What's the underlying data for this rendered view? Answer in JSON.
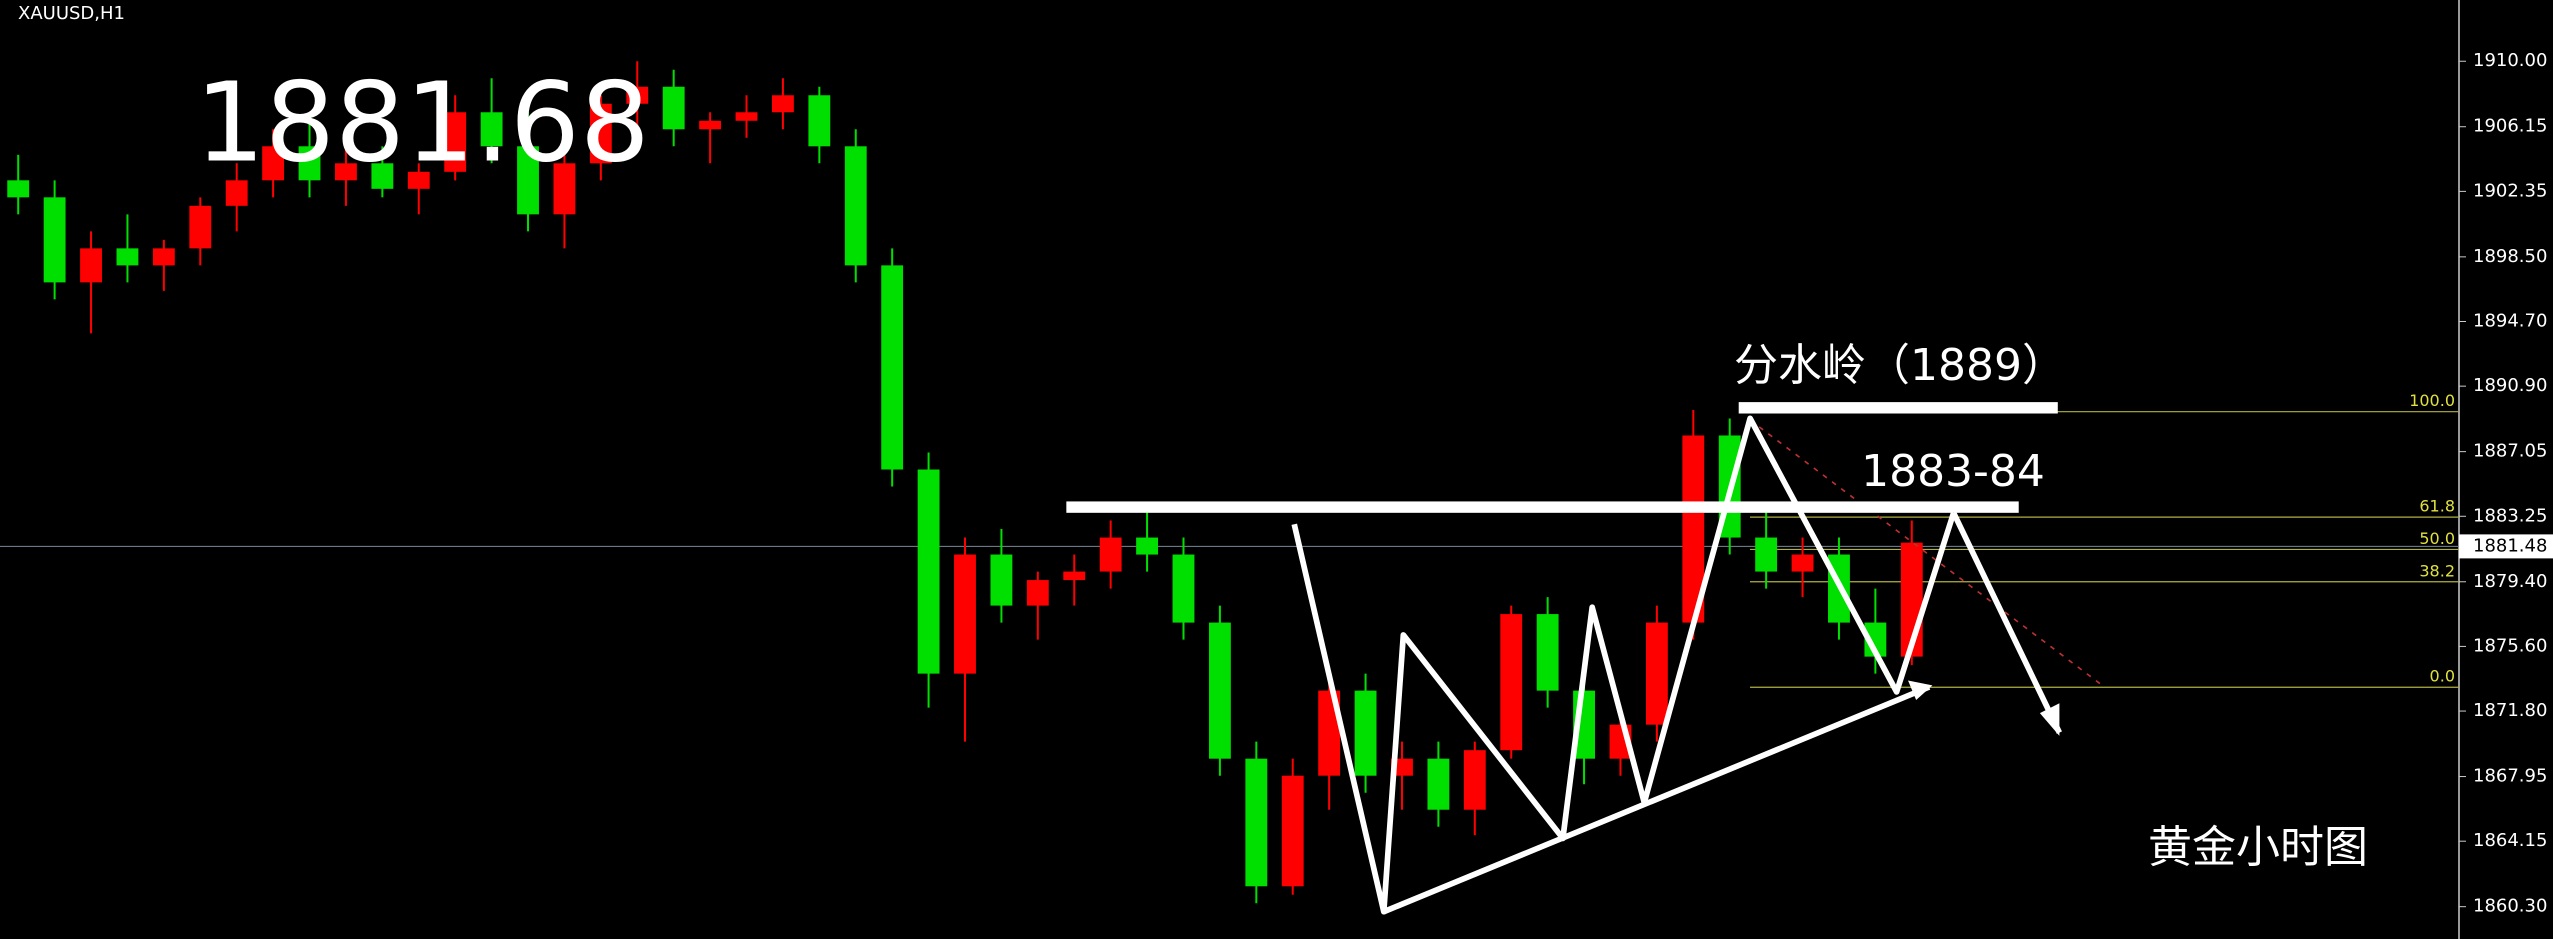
{
  "chart_data": {
    "type": "candlestick",
    "symbol": "XAUUSD,H1",
    "annotations": [
      "1881.68",
      "分水岭（1889）",
      "1883-84",
      "黄金小时图"
    ],
    "up_color": "#ff0000",
    "down_color": "#00e000",
    "candles": {
      "open": [
        1903,
        1902,
        1897,
        1899,
        1898,
        1899,
        1901.5,
        1903,
        1905,
        1903,
        1904,
        1902.5,
        1903.5,
        1907,
        1905,
        1901,
        1904,
        1907.5,
        1908.5,
        1906,
        1906.5,
        1907,
        1908,
        1905,
        1898,
        1886,
        1874,
        1881,
        1878,
        1879.5,
        1880,
        1882,
        1881,
        1877,
        1869,
        1861.5,
        1868,
        1873,
        1868,
        1869,
        1866,
        1869.5,
        1877.5,
        1873,
        1869,
        1871,
        1877,
        1888,
        1882,
        1880,
        1881,
        1877,
        1875
      ],
      "high": [
        1904.5,
        1903,
        1900,
        1901,
        1899.5,
        1902,
        1904,
        1906,
        1906.5,
        1905,
        1905,
        1904,
        1908,
        1909,
        1907,
        1905,
        1908,
        1910,
        1909.5,
        1907,
        1908,
        1909,
        1908.5,
        1906,
        1899,
        1887,
        1882,
        1882.5,
        1880,
        1881,
        1883,
        1884,
        1882,
        1878,
        1870,
        1869,
        1874,
        1874,
        1870,
        1870,
        1870,
        1878,
        1878.5,
        1874,
        1872,
        1878,
        1889.5,
        1889,
        1884,
        1882,
        1882,
        1879,
        1883
      ],
      "low": [
        1901,
        1896,
        1894,
        1897,
        1896.5,
        1898,
        1900,
        1902,
        1902,
        1901.5,
        1902,
        1901,
        1903,
        1904,
        1900,
        1899,
        1903,
        1906,
        1905,
        1904,
        1905.5,
        1906,
        1904,
        1897,
        1885,
        1872,
        1870,
        1877,
        1876,
        1878,
        1879,
        1880,
        1876,
        1868,
        1860.5,
        1861,
        1866,
        1867,
        1866,
        1865,
        1864.5,
        1869,
        1872,
        1867.5,
        1868,
        1870,
        1876,
        1881,
        1879,
        1878.5,
        1876,
        1874,
        1874.5
      ],
      "close": [
        1902,
        1897,
        1899,
        1898,
        1899,
        1901.5,
        1903,
        1905,
        1903,
        1904,
        1902.5,
        1903.5,
        1907,
        1905,
        1901,
        1904,
        1907.5,
        1908.5,
        1906,
        1906.5,
        1907,
        1908,
        1905,
        1898,
        1886,
        1874,
        1881,
        1878,
        1879.5,
        1880,
        1882,
        1881,
        1877,
        1869,
        1861.5,
        1868,
        1873,
        1868,
        1869,
        1866,
        1869.5,
        1877.5,
        1873,
        1869,
        1871,
        1877,
        1888,
        1882,
        1880,
        1881,
        1877,
        1875,
        1881.7
      ]
    },
    "fib": {
      "color": "#b0b040",
      "levels": [
        {
          "price": 1889.4,
          "label": "100.0"
        },
        {
          "price": 1883.2,
          "label": "61.8"
        },
        {
          "price": 1881.3,
          "label": "50.0"
        },
        {
          "price": 1879.4,
          "label": "38.2"
        },
        {
          "price": 1873.2,
          "label": "0.0"
        }
      ]
    },
    "last_price": {
      "value": 1881.48,
      "label": "1881.48"
    },
    "ylim": [
      1858.4,
      1913.6
    ],
    "yticks": [
      {
        "value": 1910,
        "label": "1910.00"
      },
      {
        "value": 1906.15,
        "label": "1906.15"
      },
      {
        "value": 1902.35,
        "label": "1902.35"
      },
      {
        "value": 1898.5,
        "label": "1898.50"
      },
      {
        "value": 1894.7,
        "label": "1894.70"
      },
      {
        "value": 1890.9,
        "label": "1890.90"
      },
      {
        "value": 1887.05,
        "label": "1887.05"
      },
      {
        "value": 1883.25,
        "label": "1883.25"
      },
      {
        "value": 1879.4,
        "label": "1879.40"
      },
      {
        "value": 1875.6,
        "label": "1875.60"
      },
      {
        "value": 1871.8,
        "label": "1871.80"
      },
      {
        "value": 1867.95,
        "label": "1867.95"
      },
      {
        "value": 1864.15,
        "label": "1864.15"
      },
      {
        "value": 1860.3,
        "label": "1860.30"
      }
    ]
  }
}
